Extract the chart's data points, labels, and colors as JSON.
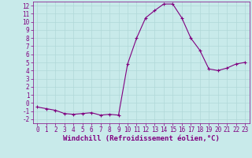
{
  "x": [
    0,
    1,
    2,
    3,
    4,
    5,
    6,
    7,
    8,
    9,
    10,
    11,
    12,
    13,
    14,
    15,
    16,
    17,
    18,
    19,
    20,
    21,
    22,
    23
  ],
  "y": [
    -0.5,
    -0.7,
    -0.9,
    -1.3,
    -1.4,
    -1.3,
    -1.2,
    -1.5,
    -1.4,
    -1.5,
    4.8,
    8.0,
    10.5,
    11.4,
    12.2,
    12.2,
    10.5,
    8.0,
    6.5,
    4.2,
    4.0,
    4.3,
    4.8,
    5.0
  ],
  "line_color": "#800080",
  "marker": "+",
  "marker_size": 3,
  "linewidth": 0.8,
  "bg_color": "#c8eaea",
  "grid_color": "#b0d8d8",
  "xlabel": "Windchill (Refroidissement éolien,°C)",
  "xlabel_color": "#800080",
  "xlabel_fontsize": 6.5,
  "tick_color": "#800080",
  "tick_fontsize": 5.5,
  "xlim": [
    -0.5,
    23.5
  ],
  "ylim": [
    -2.5,
    12.5
  ],
  "yticks": [
    -2,
    -1,
    0,
    1,
    2,
    3,
    4,
    5,
    6,
    7,
    8,
    9,
    10,
    11,
    12
  ],
  "xticks": [
    0,
    1,
    2,
    3,
    4,
    5,
    6,
    7,
    8,
    9,
    10,
    11,
    12,
    13,
    14,
    15,
    16,
    17,
    18,
    19,
    20,
    21,
    22,
    23
  ]
}
